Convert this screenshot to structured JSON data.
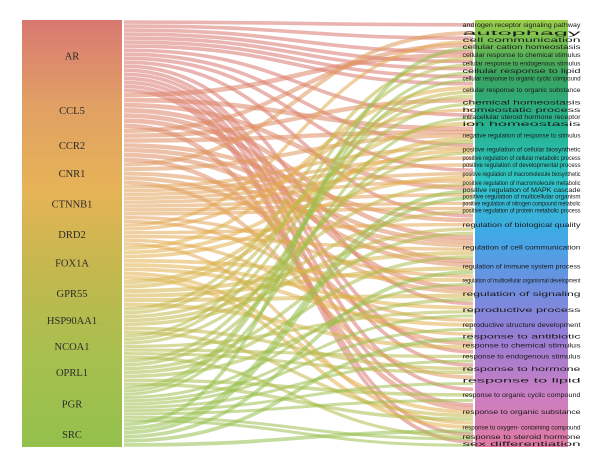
{
  "diagram": {
    "type": "sankey",
    "left_column_colors": [
      "#d97872",
      "#e1a064",
      "#e6b356",
      "#c1b84e",
      "#a6c04e",
      "#94c04c"
    ],
    "right_column_colors": [
      "#9bcf4a",
      "#3aa35f",
      "#26b28f",
      "#2fc4c4",
      "#3fa9e6",
      "#6e8fe0",
      "#9c7cd4",
      "#c97fc4",
      "#e07aa2"
    ],
    "genes": [
      {
        "label": "AR",
        "color": "#d9766f",
        "weight": 3.2
      },
      {
        "label": "CCL5",
        "color": "#dc8466",
        "weight": 1.6
      },
      {
        "label": "CCR2",
        "color": "#de8d62",
        "weight": 1.5
      },
      {
        "label": "CNR1",
        "color": "#e09a5c",
        "weight": 1.0
      },
      {
        "label": "CTNNB1",
        "color": "#e2a257",
        "weight": 1.7
      },
      {
        "label": "DRD2",
        "color": "#e3aa52",
        "weight": 1.0
      },
      {
        "label": "FOX1A",
        "color": "#e2b04f",
        "weight": 1.5
      },
      {
        "label": "GPR55",
        "color": "#d6b44c",
        "weight": 1.2
      },
      {
        "label": "HSP90AA1",
        "color": "#c5b84c",
        "weight": 1.2
      },
      {
        "label": "NCOA1",
        "color": "#b7bb4c",
        "weight": 1.1
      },
      {
        "label": "OPRL1",
        "color": "#a9be4c",
        "weight": 1.2
      },
      {
        "label": "PGR",
        "color": "#9ec04c",
        "weight": 1.6
      },
      {
        "label": "SRC",
        "color": "#93c04d",
        "weight": 1.1
      }
    ],
    "terms": [
      "androgen receptor signaling pathway",
      "autophagy",
      "cell communication",
      "cellular cation homeostasis",
      "cellular response to chemical stimulus",
      "cellular response to endogenous stimulus",
      "cellular response to lipid",
      "cellular response to organic cyclic compound",
      "cellular response to organic substance",
      "chemical homeostasis",
      "homeostatic process",
      "intracellular steroid hormone receptor",
      "ion homeostasis",
      "negative regulation of response to stimulus",
      "positive regulation of cellular biosynthetic",
      "positive regulation of cellular metabolic process",
      "positive regulation of developmental process",
      "positive regulation of macromolecule biosynthetic",
      "positive regulation of macromolecule metabolic",
      "positive regulation of MAPK cascade",
      "positive regulation of multicellular organism",
      "positive regulation of nitrogen compound metabolic",
      "positive regulation of protein metabolic process",
      "regulation of biological quality",
      "regulation of cell communication",
      "regulation of immune system process",
      "regulation of multicellular organismal development",
      "regulation of signaling",
      "reproductive process",
      "reproductive structure development",
      "response to antibiotic",
      "response to chemical stimulus",
      "response to endogenous stimulus",
      "response to hormone",
      "response to lipid",
      "response to organic cyclic compound",
      "response to organic substance",
      "response to oxygen- containing compound",
      "response to steroid hormone",
      "sex differentiation"
    ],
    "term_weights": [
      1.4,
      1.0,
      1.0,
      1.0,
      1.4,
      1.0,
      1.2,
      1.0,
      2.4,
      1.2,
      1.0,
      1.0,
      1.0,
      2.4,
      1.6,
      1.0,
      1.0,
      1.6,
      1.0,
      1.0,
      1.0,
      1.0,
      1.0,
      3.2,
      3.4,
      2.2,
      1.8,
      2.2,
      2.4,
      2.0,
      1.4,
      1.2,
      2.0,
      1.6,
      1.8,
      2.4,
      2.6,
      1.8,
      1.0,
      1.0
    ],
    "links": [
      [
        0,
        0
      ],
      [
        0,
        2
      ],
      [
        0,
        4
      ],
      [
        0,
        5
      ],
      [
        0,
        6
      ],
      [
        0,
        7
      ],
      [
        0,
        8
      ],
      [
        0,
        11
      ],
      [
        0,
        14
      ],
      [
        0,
        17
      ],
      [
        0,
        23
      ],
      [
        0,
        28
      ],
      [
        0,
        32
      ],
      [
        0,
        33
      ],
      [
        0,
        35
      ],
      [
        0,
        36
      ],
      [
        0,
        38
      ],
      [
        0,
        39
      ],
      [
        1,
        4
      ],
      [
        1,
        13
      ],
      [
        1,
        19
      ],
      [
        1,
        24
      ],
      [
        1,
        25
      ],
      [
        1,
        27
      ],
      [
        1,
        36
      ],
      [
        2,
        3
      ],
      [
        2,
        9
      ],
      [
        2,
        13
      ],
      [
        2,
        23
      ],
      [
        2,
        24
      ],
      [
        2,
        25
      ],
      [
        2,
        31
      ],
      [
        3,
        1
      ],
      [
        3,
        13
      ],
      [
        3,
        24
      ],
      [
        3,
        27
      ],
      [
        3,
        34
      ],
      [
        4,
        14
      ],
      [
        4,
        15
      ],
      [
        4,
        16
      ],
      [
        4,
        17
      ],
      [
        4,
        18
      ],
      [
        4,
        20
      ],
      [
        4,
        21
      ],
      [
        4,
        22
      ],
      [
        4,
        26
      ],
      [
        4,
        29
      ],
      [
        5,
        2
      ],
      [
        5,
        10
      ],
      [
        5,
        23
      ],
      [
        5,
        24
      ],
      [
        5,
        30
      ],
      [
        5,
        37
      ],
      [
        6,
        8
      ],
      [
        6,
        14
      ],
      [
        6,
        17
      ],
      [
        6,
        26
      ],
      [
        6,
        28
      ],
      [
        6,
        29
      ],
      [
        6,
        36
      ],
      [
        6,
        37
      ],
      [
        7,
        12
      ],
      [
        7,
        13
      ],
      [
        7,
        24
      ],
      [
        7,
        25
      ],
      [
        7,
        27
      ],
      [
        7,
        31
      ],
      [
        8,
        4
      ],
      [
        8,
        8
      ],
      [
        8,
        18
      ],
      [
        8,
        22
      ],
      [
        8,
        23
      ],
      [
        8,
        33
      ],
      [
        8,
        36
      ],
      [
        9,
        5
      ],
      [
        9,
        8
      ],
      [
        9,
        14
      ],
      [
        9,
        28
      ],
      [
        9,
        32
      ],
      [
        9,
        33
      ],
      [
        9,
        38
      ],
      [
        10,
        9
      ],
      [
        10,
        13
      ],
      [
        10,
        23
      ],
      [
        10,
        24
      ],
      [
        10,
        27
      ],
      [
        10,
        35
      ],
      [
        10,
        36
      ],
      [
        11,
        6
      ],
      [
        11,
        7
      ],
      [
        11,
        11
      ],
      [
        11,
        26
      ],
      [
        11,
        28
      ],
      [
        11,
        29
      ],
      [
        11,
        32
      ],
      [
        11,
        34
      ],
      [
        11,
        35
      ],
      [
        11,
        38
      ],
      [
        11,
        39
      ],
      [
        12,
        3
      ],
      [
        12,
        19
      ],
      [
        12,
        20
      ],
      [
        12,
        25
      ],
      [
        12,
        30
      ],
      [
        12,
        37
      ]
    ]
  }
}
